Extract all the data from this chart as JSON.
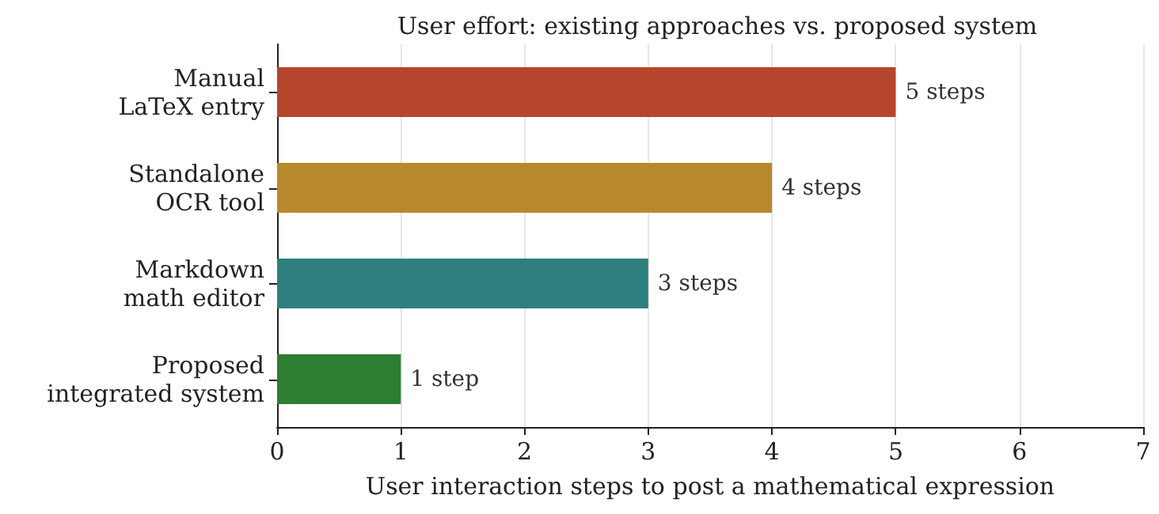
{
  "chart_data": {
    "type": "bar",
    "orientation": "horizontal",
    "title": "User effort: existing approaches vs. proposed system",
    "xlabel": "User interaction steps to post a mathematical expression",
    "categories": [
      "Manual\nLaTeX entry",
      "Standalone\nOCR tool",
      "Markdown\nmath editor",
      "Proposed\nintegrated system"
    ],
    "values": [
      5,
      4,
      3,
      1
    ],
    "colors": [
      "#b5462b",
      "#b8892b",
      "#2e7f7e",
      "#2e7d32"
    ],
    "value_labels": [
      "5 steps",
      "4 steps",
      "3 steps",
      "1 step"
    ],
    "xlim": [
      0,
      7
    ],
    "xticks": [
      0,
      1,
      2,
      3,
      4,
      5,
      6,
      7
    ],
    "grid": "x"
  }
}
